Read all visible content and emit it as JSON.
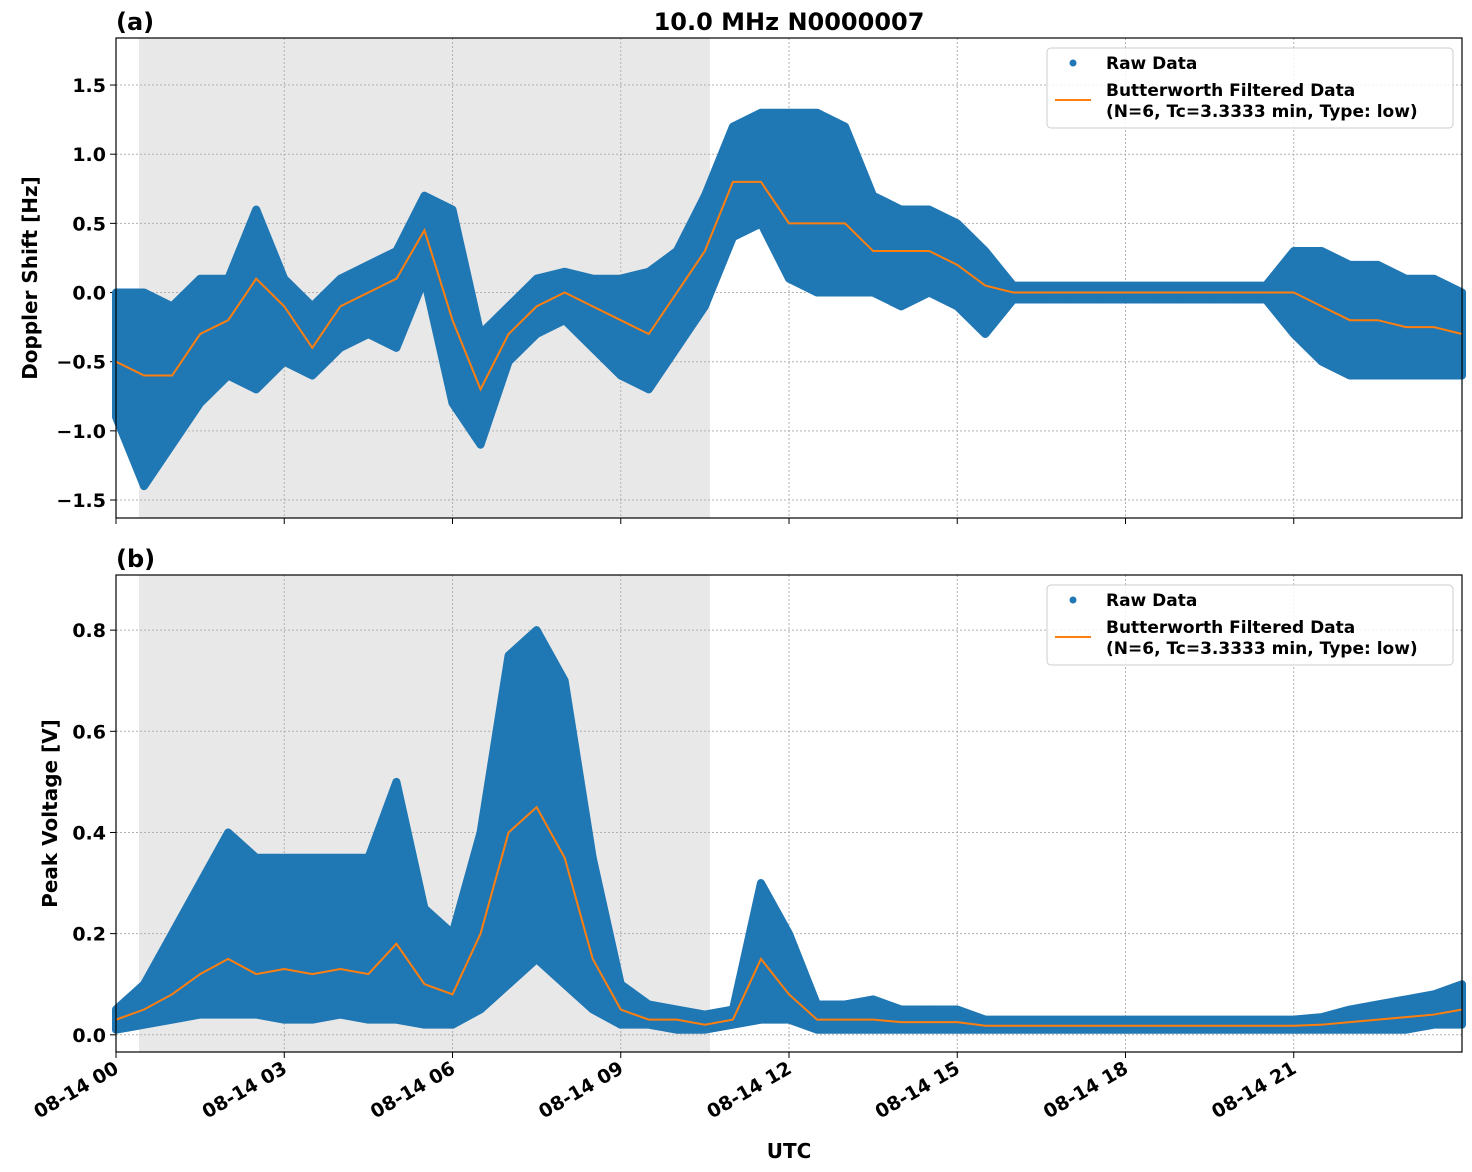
{
  "chart_data": [
    {
      "type": "scatter",
      "panel_label": "(a)",
      "title": "10.0 MHz N0000007",
      "xlabel": "",
      "ylabel": "Doppler Shift [Hz]",
      "xlim_hours": [
        0,
        24
      ],
      "ylim": [
        -1.63,
        1.84
      ],
      "yticks": [
        -1.5,
        -1.0,
        -0.5,
        0.0,
        0.5,
        1.0,
        1.5
      ],
      "ytick_labels": [
        "−1.5",
        "−1.0",
        "−0.5",
        "0.0",
        "0.5",
        "1.0",
        "1.5"
      ],
      "grid": true,
      "legend_placement": "top-right",
      "shaded_region_hours": [
        0.41,
        10.59
      ],
      "x_hours": [
        0,
        0.5,
        1,
        1.5,
        2,
        2.5,
        3,
        3.5,
        4,
        4.5,
        5,
        5.5,
        6,
        6.5,
        7,
        7.5,
        8,
        8.5,
        9,
        9.5,
        10,
        10.5,
        11,
        11.5,
        12,
        12.5,
        13,
        13.5,
        14,
        14.5,
        15,
        15.5,
        16,
        16.5,
        17,
        17.5,
        18,
        18.5,
        19,
        19.5,
        20,
        20.5,
        21,
        21.5,
        22,
        22.5,
        23,
        23.5,
        24
      ],
      "series": [
        {
          "name": "Raw Data",
          "kind": "scatter-envelope",
          "color": "#1f77b4",
          "low": [
            -0.9,
            -1.4,
            -1.1,
            -0.8,
            -0.6,
            -0.7,
            -0.5,
            -0.6,
            -0.4,
            -0.3,
            -0.4,
            0.1,
            -0.8,
            -1.1,
            -0.5,
            -0.3,
            -0.2,
            -0.4,
            -0.6,
            -0.7,
            -0.4,
            -0.1,
            0.4,
            0.5,
            0.1,
            0.0,
            0.0,
            0.0,
            -0.1,
            0.0,
            -0.1,
            -0.3,
            -0.05,
            -0.05,
            -0.05,
            -0.05,
            -0.05,
            -0.05,
            -0.05,
            -0.05,
            -0.05,
            -0.05,
            -0.3,
            -0.5,
            -0.6,
            -0.6,
            -0.6,
            -0.6,
            -0.6
          ],
          "high": [
            0.0,
            0.0,
            -0.1,
            0.1,
            0.1,
            0.6,
            0.1,
            -0.1,
            0.1,
            0.2,
            0.3,
            0.7,
            0.6,
            -0.3,
            -0.1,
            0.1,
            0.15,
            0.1,
            0.1,
            0.15,
            0.3,
            0.7,
            1.2,
            1.3,
            1.3,
            1.3,
            1.2,
            0.7,
            0.6,
            0.6,
            0.5,
            0.3,
            0.05,
            0.05,
            0.05,
            0.05,
            0.05,
            0.05,
            0.05,
            0.05,
            0.05,
            0.05,
            0.3,
            0.3,
            0.2,
            0.2,
            0.1,
            0.1,
            0.0
          ]
        },
        {
          "name": "Butterworth Filtered Data",
          "name_line2": "(N=6, Tc=3.3333 min, Type: low)",
          "kind": "line",
          "color": "#ff7f0e",
          "values": [
            -0.5,
            -0.6,
            -0.6,
            -0.3,
            -0.2,
            0.1,
            -0.1,
            -0.4,
            -0.1,
            0.0,
            0.1,
            0.45,
            -0.2,
            -0.7,
            -0.3,
            -0.1,
            0.0,
            -0.1,
            -0.2,
            -0.3,
            0.0,
            0.3,
            0.8,
            0.8,
            0.5,
            0.5,
            0.5,
            0.3,
            0.3,
            0.3,
            0.2,
            0.05,
            0,
            0,
            0,
            0,
            0,
            0,
            0,
            0,
            0,
            0,
            0.0,
            -0.1,
            -0.2,
            -0.2,
            -0.25,
            -0.25,
            -0.3
          ]
        }
      ]
    },
    {
      "type": "scatter",
      "panel_label": "(b)",
      "xlabel": "UTC",
      "ylabel": "Peak Voltage [V]",
      "xlim_hours": [
        0,
        24
      ],
      "ylim": [
        -0.034,
        0.909
      ],
      "yticks": [
        0.0,
        0.2,
        0.4,
        0.6,
        0.8
      ],
      "ytick_labels": [
        "0.0",
        "0.2",
        "0.4",
        "0.6",
        "0.8"
      ],
      "xticks_hours": [
        0,
        3,
        6,
        9,
        12,
        15,
        18,
        21
      ],
      "xtick_labels": [
        "08-14 00",
        "08-14 03",
        "08-14 06",
        "08-14 09",
        "08-14 12",
        "08-14 15",
        "08-14 18",
        "08-14 21"
      ],
      "grid": true,
      "legend_placement": "top-right",
      "shaded_region_hours": [
        0.41,
        10.59
      ],
      "x_hours": [
        0,
        0.5,
        1,
        1.5,
        2,
        2.5,
        3,
        3.5,
        4,
        4.5,
        5,
        5.5,
        6,
        6.5,
        7,
        7.5,
        8,
        8.5,
        9,
        9.5,
        10,
        10.5,
        11,
        11.5,
        12,
        12.5,
        13,
        13.5,
        14,
        14.5,
        15,
        15.5,
        16,
        16.5,
        17,
        17.5,
        18,
        18.5,
        19,
        19.5,
        20,
        20.5,
        21,
        21.5,
        22,
        22.5,
        23,
        23.5,
        24
      ],
      "series": [
        {
          "name": "Raw Data",
          "kind": "scatter-envelope",
          "color": "#1f77b4",
          "low": [
            0.01,
            0.02,
            0.03,
            0.04,
            0.04,
            0.04,
            0.03,
            0.03,
            0.04,
            0.03,
            0.03,
            0.02,
            0.02,
            0.05,
            0.1,
            0.15,
            0.1,
            0.05,
            0.02,
            0.02,
            0.01,
            0.01,
            0.02,
            0.03,
            0.03,
            0.01,
            0.01,
            0.01,
            0.01,
            0.01,
            0.01,
            0.01,
            0.01,
            0.01,
            0.01,
            0.01,
            0.01,
            0.01,
            0.01,
            0.01,
            0.01,
            0.01,
            0.01,
            0.01,
            0.01,
            0.01,
            0.01,
            0.02,
            0.02
          ],
          "high": [
            0.05,
            0.1,
            0.2,
            0.3,
            0.4,
            0.35,
            0.35,
            0.35,
            0.35,
            0.35,
            0.5,
            0.25,
            0.2,
            0.4,
            0.75,
            0.8,
            0.7,
            0.35,
            0.1,
            0.06,
            0.05,
            0.04,
            0.05,
            0.3,
            0.2,
            0.06,
            0.06,
            0.07,
            0.05,
            0.05,
            0.05,
            0.03,
            0.03,
            0.03,
            0.03,
            0.03,
            0.03,
            0.03,
            0.03,
            0.03,
            0.03,
            0.03,
            0.03,
            0.035,
            0.05,
            0.06,
            0.07,
            0.08,
            0.1
          ]
        },
        {
          "name": "Butterworth Filtered Data",
          "name_line2": "(N=6, Tc=3.3333 min, Type: low)",
          "kind": "line",
          "color": "#ff7f0e",
          "values": [
            0.03,
            0.05,
            0.08,
            0.12,
            0.15,
            0.12,
            0.13,
            0.12,
            0.13,
            0.12,
            0.18,
            0.1,
            0.08,
            0.2,
            0.4,
            0.45,
            0.35,
            0.15,
            0.05,
            0.03,
            0.03,
            0.02,
            0.03,
            0.15,
            0.08,
            0.03,
            0.03,
            0.03,
            0.025,
            0.025,
            0.025,
            0.018,
            0.018,
            0.018,
            0.018,
            0.018,
            0.018,
            0.018,
            0.018,
            0.018,
            0.018,
            0.018,
            0.018,
            0.02,
            0.025,
            0.03,
            0.035,
            0.04,
            0.05
          ]
        }
      ]
    }
  ]
}
